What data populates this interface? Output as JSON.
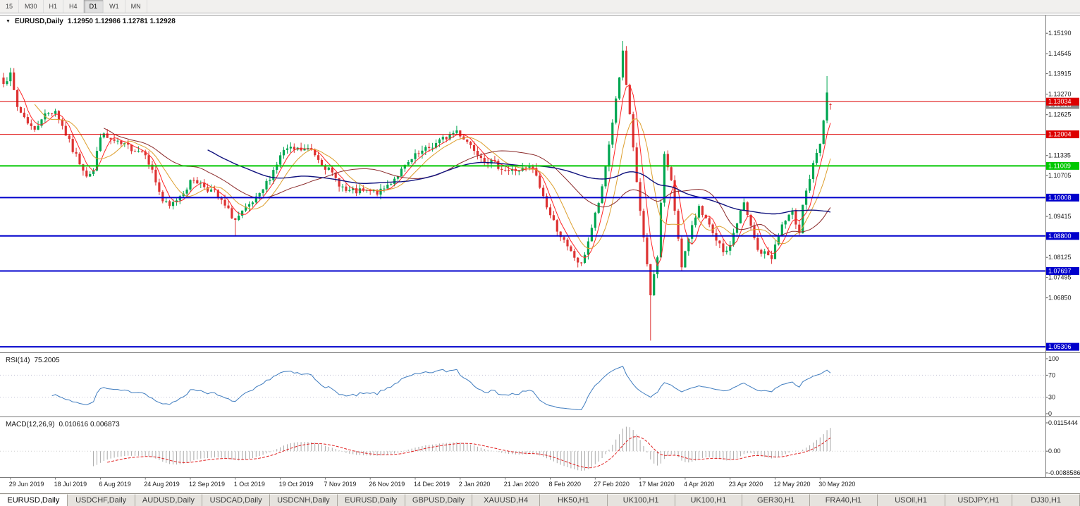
{
  "toolbar": {
    "timeframes": [
      "15",
      "M30",
      "H1",
      "H4",
      "D1",
      "W1",
      "MN"
    ],
    "active": "D1"
  },
  "icons": {
    "chart_menu_arrow": "▼"
  },
  "main_chart": {
    "symbol": "EURUSD,Daily",
    "ohlc": "1.12950 1.12986 1.12781 1.12928"
  },
  "chart_data": {
    "type": "candlestick",
    "symbol": "EURUSD",
    "timeframe": "Daily",
    "ylim": [
      1.0513,
      1.1575
    ],
    "y_ticks": [
      "1.15190",
      "1.14545",
      "1.13915",
      "1.13270",
      "1.12625",
      "1.11335",
      "1.10705",
      "1.09415",
      "1.08125",
      "1.07495",
      "1.06850"
    ],
    "x_labels": [
      "29 Jun 2019",
      "18 Jul 2019",
      "6 Aug 2019",
      "24 Aug 2019",
      "12 Sep 2019",
      "1 Oct 2019",
      "19 Oct 2019",
      "7 Nov 2019",
      "26 Nov 2019",
      "14 Dec 2019",
      "2 Jan 2020",
      "21 Jan 2020",
      "8 Feb 2020",
      "27 Feb 2020",
      "17 Mar 2020",
      "4 Apr 2020",
      "23 Apr 2020",
      "12 May 2020",
      "30 May 2020"
    ],
    "x_label_indices": [
      2,
      15,
      28,
      41,
      54,
      67,
      80,
      93,
      106,
      119,
      132,
      145,
      158,
      171,
      184,
      197,
      210,
      223,
      236
    ],
    "candles": {
      "count": 240,
      "seed": 7,
      "noise": 0.0011,
      "wick": 0.0016,
      "up_color": "#00a651",
      "down_color": "#dd3333",
      "anchors": [
        [
          0,
          1.137
        ],
        [
          2,
          1.1385
        ],
        [
          4,
          1.1286
        ],
        [
          9,
          1.121
        ],
        [
          11,
          1.1255
        ],
        [
          15,
          1.1277
        ],
        [
          20,
          1.115
        ],
        [
          24,
          1.1075
        ],
        [
          26,
          1.1085
        ],
        [
          28,
          1.12
        ],
        [
          33,
          1.117
        ],
        [
          41,
          1.1145
        ],
        [
          46,
          1.099
        ],
        [
          48,
          1.097
        ],
        [
          55,
          1.106
        ],
        [
          61,
          1.1015
        ],
        [
          67,
          1.093
        ],
        [
          74,
          1.1005
        ],
        [
          81,
          1.115
        ],
        [
          89,
          1.1152
        ],
        [
          99,
          1.102
        ],
        [
          109,
          1.1018
        ],
        [
          119,
          1.113
        ],
        [
          131,
          1.1212
        ],
        [
          139,
          1.1122
        ],
        [
          146,
          1.1085
        ],
        [
          153,
          1.1093
        ],
        [
          158,
          1.0945
        ],
        [
          163,
          1.084
        ],
        [
          167,
          1.0786
        ],
        [
          173,
          1.1026
        ],
        [
          179,
          1.1456
        ],
        [
          183,
          1.105
        ],
        [
          187,
          1.0692
        ],
        [
          189,
          1.082
        ],
        [
          191,
          1.1141
        ],
        [
          193,
          1.1048
        ],
        [
          196,
          1.079
        ],
        [
          201,
          1.098
        ],
        [
          206,
          1.0858
        ],
        [
          209,
          1.0823
        ],
        [
          213,
          1.0955
        ],
        [
          214,
          1.098
        ],
        [
          218,
          1.0834
        ],
        [
          222,
          1.0815
        ],
        [
          225,
          1.0915
        ],
        [
          228,
          1.095
        ],
        [
          230,
          1.0897
        ],
        [
          231,
          1.0983
        ],
        [
          234,
          1.1101
        ],
        [
          235,
          1.1134
        ],
        [
          236,
          1.117
        ],
        [
          237,
          1.1235
        ],
        [
          238,
          1.1337
        ],
        [
          239,
          1.12928
        ]
      ],
      "overrides": [
        {
          "i": 67,
          "l": 1.0879
        },
        {
          "i": 179,
          "h": 1.1495
        },
        {
          "i": 187,
          "l": 1.055
        },
        {
          "i": 238,
          "h": 1.1384
        },
        {
          "i": 239,
          "o": 1.1295,
          "h": 1.12986,
          "l": 1.12781,
          "c": 1.12928
        }
      ]
    },
    "mas": [
      {
        "period": 5,
        "color": "#ff2525",
        "width": 1
      },
      {
        "period": 10,
        "color": "#dd9f2e",
        "width": 1
      },
      {
        "period": 30,
        "color": "#8b2a2a",
        "width": 1
      },
      {
        "period": 60,
        "color": "#10127e",
        "width": 1.4
      }
    ],
    "hlines": [
      {
        "value": 1.13034,
        "label": "1.13034",
        "color": "#dd0000",
        "width": 1
      },
      {
        "value": 1.12004,
        "label": "1.12004",
        "color": "#dd0000",
        "width": 1
      },
      {
        "value": 1.11009,
        "label": "1.11009",
        "color": "#00c800",
        "width": 2
      },
      {
        "value": 1.10008,
        "label": "1.10008",
        "color": "#0000cc",
        "width": 2
      },
      {
        "value": 1.088,
        "label": "1.08800",
        "color": "#0000cc",
        "width": 2
      },
      {
        "value": 1.07697,
        "label": "1.07697",
        "color": "#0000cc",
        "width": 2
      },
      {
        "value": 1.05306,
        "label": "1.05306",
        "color": "#0000cc",
        "width": 2
      }
    ],
    "current_price": {
      "value": 1.12928,
      "label": "1.12928",
      "color": "#8a8a8a"
    }
  },
  "rsi": {
    "name": "RSI(14)",
    "value": "75.2005",
    "period": 14,
    "color": "#3f7cbf",
    "ticks": [
      "100",
      "70",
      "30",
      "0"
    ],
    "levels": [
      70,
      30
    ]
  },
  "macd": {
    "name": "MACD(12,26,9)",
    "values": "0.010616 0.006873",
    "fast": 12,
    "slow": 26,
    "signal": 9,
    "ylim": [
      -0.0088586,
      0.0115444
    ],
    "ticks": [
      "0.0115444",
      "0.00",
      "-0.0088586"
    ],
    "hist_color": "#a8a8a8",
    "signal_color": "#e02020"
  },
  "tabs": {
    "active_index": 0,
    "items": [
      "EURUSD,Daily",
      "USDCHF,Daily",
      "AUDUSD,Daily",
      "USDCAD,Daily",
      "USDCNH,Daily",
      "EURUSD,Daily",
      "GBPUSD,Daily",
      "XAUUSD,H4",
      "HK50,H1",
      "UK100,H1",
      "UK100,H1",
      "GER30,H1",
      "FRA40,H1",
      "USOil,H1",
      "USDJPY,H1",
      "DJ30,H1"
    ]
  }
}
